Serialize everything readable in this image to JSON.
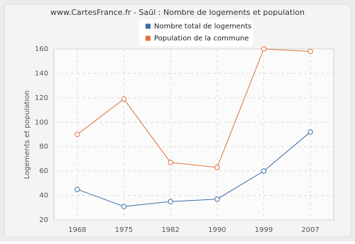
{
  "chart_data": {
    "type": "line",
    "title": "www.CartesFrance.fr - Saül : Nombre de logements et population",
    "y_label": "Logements et population",
    "categories": [
      "1968",
      "1975",
      "1982",
      "1990",
      "1999",
      "2007"
    ],
    "series": [
      {
        "name": "Nombre total de logements",
        "color": "#3a6ea5",
        "values": [
          45,
          31,
          35,
          37,
          60,
          92
        ]
      },
      {
        "name": "Population de la commune",
        "color": "#e0703a",
        "values": [
          90,
          119,
          67,
          63,
          160,
          158
        ]
      }
    ],
    "ylim": [
      20,
      160
    ],
    "yticks": [
      20,
      40,
      60,
      80,
      100,
      120,
      140,
      160
    ],
    "grid": true
  }
}
